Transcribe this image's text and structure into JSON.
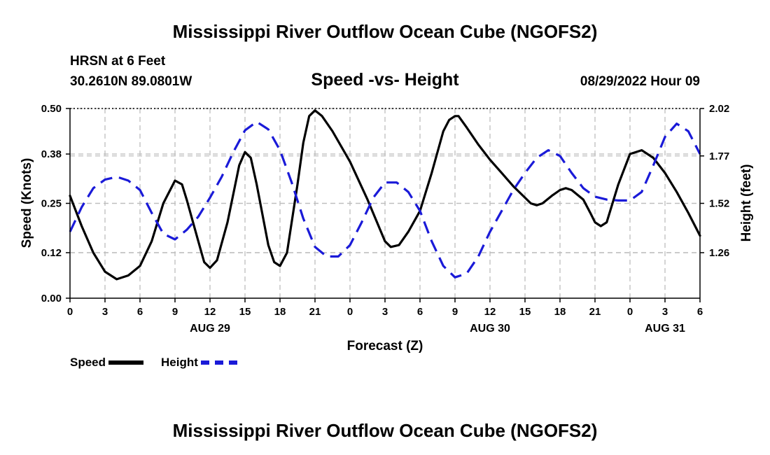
{
  "page": {
    "title": "Mississippi River Outflow Ocean Cube (NGOFS2)",
    "station": "HRSN at 6 Feet",
    "coords": "30.2610N  89.0801W",
    "subtitle": "Speed -vs- Height",
    "datetime": "08/29/2022 Hour 09",
    "bottom_title": "Mississippi River Outflow Ocean Cube (NGOFS2)"
  },
  "legend": {
    "speed": "Speed",
    "height": "Height"
  },
  "colors": {
    "speed": "#000000",
    "height": "#1a1ad8",
    "grid": "#bdbdbd"
  },
  "chart_data": {
    "type": "line",
    "xlabel": "Forecast (Z)",
    "ylabel": "Speed (Knots)",
    "y2label": "Height (feet)",
    "xlim": [
      0,
      54
    ],
    "ylim": [
      0,
      0.5
    ],
    "y2lim": [
      1.02,
      2.02
    ],
    "x_tick_positions": [
      0,
      3,
      6,
      9,
      12,
      15,
      18,
      21,
      24,
      27,
      30,
      33,
      36,
      39,
      42,
      45,
      48,
      51,
      54
    ],
    "x_tick_labels": [
      "0",
      "3",
      "6",
      "9",
      "12",
      "15",
      "18",
      "21",
      "0",
      "3",
      "6",
      "9",
      "12",
      "15",
      "18",
      "21",
      "0",
      "3",
      "6"
    ],
    "date_labels": [
      {
        "x": 12,
        "label": "AUG 29"
      },
      {
        "x": 36,
        "label": "AUG 30"
      },
      {
        "x": 51,
        "label": "AUG 31"
      }
    ],
    "y_ticks": [
      0.0,
      0.12,
      0.25,
      0.38,
      0.5
    ],
    "y_tick_labels": [
      "0.00",
      "0.12",
      "0.25",
      "0.38",
      "0.50"
    ],
    "y2_ticks": [
      1.26,
      1.52,
      1.77,
      2.02
    ],
    "y2_tick_labels": [
      "1.26",
      "1.52",
      "1.77",
      "2.02"
    ],
    "series": [
      {
        "name": "Speed",
        "axis": "left",
        "style": "solid",
        "x": [
          0,
          1,
          2,
          3,
          4,
          5,
          6,
          7,
          8,
          9,
          9.6,
          10,
          11,
          11.5,
          12,
          12.6,
          13.5,
          14.5,
          15,
          15.5,
          16,
          17,
          17.5,
          18,
          18.6,
          19.5,
          20,
          20.5,
          21,
          21.6,
          22.5,
          24,
          25.5,
          27,
          27.5,
          28.2,
          29,
          30,
          31,
          32,
          32.5,
          33,
          33.3,
          34,
          35,
          36,
          37,
          38,
          39,
          39.5,
          40,
          40.5,
          41.3,
          42,
          42.5,
          43,
          44,
          44.6,
          45,
          45.5,
          46,
          46.5,
          47,
          48,
          49,
          50,
          51,
          52,
          53,
          54
        ],
        "values": [
          0.27,
          0.19,
          0.12,
          0.07,
          0.05,
          0.06,
          0.085,
          0.15,
          0.25,
          0.31,
          0.3,
          0.26,
          0.15,
          0.095,
          0.08,
          0.1,
          0.2,
          0.35,
          0.385,
          0.37,
          0.3,
          0.14,
          0.095,
          0.085,
          0.12,
          0.3,
          0.41,
          0.48,
          0.495,
          0.48,
          0.44,
          0.36,
          0.26,
          0.15,
          0.135,
          0.14,
          0.175,
          0.23,
          0.33,
          0.44,
          0.47,
          0.48,
          0.48,
          0.45,
          0.405,
          0.365,
          0.33,
          0.295,
          0.265,
          0.25,
          0.245,
          0.25,
          0.27,
          0.285,
          0.29,
          0.285,
          0.26,
          0.225,
          0.2,
          0.19,
          0.2,
          0.25,
          0.3,
          0.38,
          0.39,
          0.37,
          0.33,
          0.28,
          0.225,
          0.165
        ]
      },
      {
        "name": "Height",
        "axis": "right",
        "style": "dashed",
        "x": [
          0,
          1,
          2,
          3,
          4,
          5,
          6,
          7,
          8,
          9,
          10,
          11,
          12,
          13,
          14,
          15,
          16,
          17,
          18,
          19,
          20,
          21,
          22,
          23,
          24,
          25,
          26,
          27,
          28,
          29,
          30,
          31,
          32,
          33,
          34,
          35,
          36,
          37,
          38,
          39,
          40,
          41,
          42,
          43,
          44,
          45,
          46,
          47,
          48,
          49,
          50,
          51,
          52,
          53,
          54
        ],
        "values": [
          1.37,
          1.5,
          1.6,
          1.645,
          1.66,
          1.64,
          1.59,
          1.47,
          1.36,
          1.33,
          1.38,
          1.45,
          1.55,
          1.66,
          1.79,
          1.905,
          1.95,
          1.91,
          1.8,
          1.63,
          1.44,
          1.29,
          1.24,
          1.24,
          1.3,
          1.42,
          1.55,
          1.63,
          1.63,
          1.58,
          1.48,
          1.32,
          1.19,
          1.13,
          1.15,
          1.24,
          1.37,
          1.48,
          1.59,
          1.68,
          1.76,
          1.8,
          1.77,
          1.68,
          1.6,
          1.555,
          1.54,
          1.535,
          1.535,
          1.58,
          1.72,
          1.87,
          1.94,
          1.9,
          1.78
        ]
      }
    ]
  }
}
